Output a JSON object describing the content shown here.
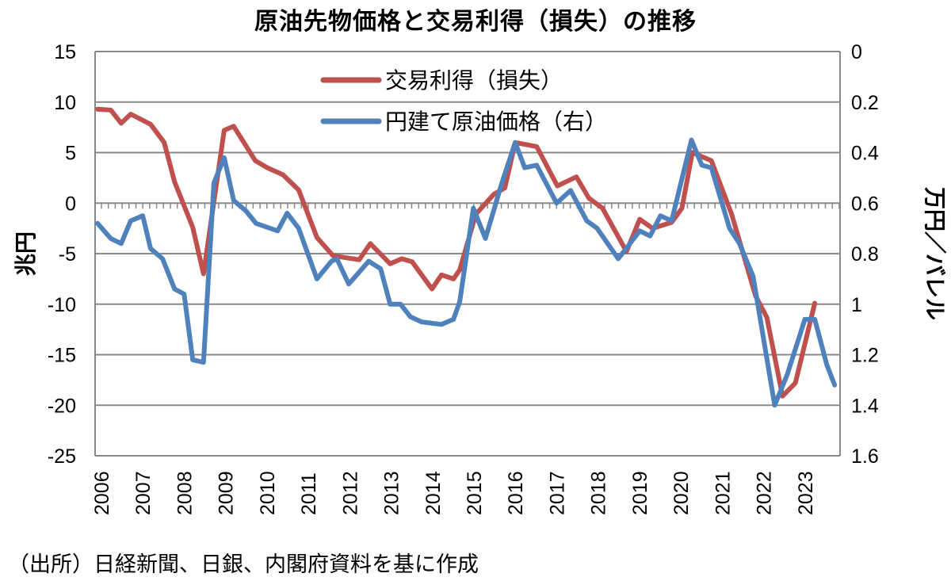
{
  "chart_data": {
    "type": "line",
    "title": "原油先物価格と交易利得（損失）の推移",
    "source_note": "（出所）日経新聞、日銀、内閣府資料を基に作成",
    "ylabel_left": "兆円",
    "ylabel_right": "万円／バレル",
    "xlabel": "",
    "x_ticks": [
      "2006",
      "2007",
      "2008",
      "2009",
      "2010",
      "2011",
      "2012",
      "2013",
      "2014",
      "2015",
      "2016",
      "2017",
      "2018",
      "2019",
      "2020",
      "2021",
      "2022",
      "2023"
    ],
    "xlim": [
      2006,
      2024
    ],
    "ylim_left": [
      -25,
      15
    ],
    "y_ticks_left": [
      "15",
      "10",
      "5",
      "0",
      "-5",
      "-10",
      "-15",
      "-20",
      "-25"
    ],
    "ylim_right": [
      1.6,
      0
    ],
    "right_axis_inverted": true,
    "y_ticks_right": [
      "0",
      "0.2",
      "0.4",
      "0.6",
      "0.8",
      "1",
      "1.2",
      "1.4",
      "1.6"
    ],
    "grid": true,
    "legend_position": "top-center",
    "series": [
      {
        "name": "交易利得（損失）",
        "axis": "left",
        "color": "#c0504d",
        "x": [
          2006.06,
          2006.38,
          2006.63,
          2006.86,
          2007.34,
          2007.67,
          2007.92,
          2008.36,
          2008.62,
          2009.12,
          2009.35,
          2009.87,
          2010.16,
          2010.54,
          2010.92,
          2011.36,
          2011.75,
          2012.38,
          2012.65,
          2013.13,
          2013.41,
          2013.66,
          2014.14,
          2014.37,
          2014.66,
          2014.81,
          2015.2,
          2015.64,
          2015.9,
          2016.15,
          2016.67,
          2017.17,
          2017.63,
          2017.93,
          2018.26,
          2018.84,
          2019.16,
          2019.47,
          2019.93,
          2020.18,
          2020.43,
          2020.89,
          2021.38,
          2021.96,
          2022.23,
          2022.61,
          2022.92,
          2023.39
        ],
        "y": [
          9.3,
          9.2,
          7.9,
          8.8,
          7.8,
          6.0,
          2.1,
          -2.4,
          -7.0,
          7.2,
          7.6,
          4.2,
          3.5,
          2.8,
          1.3,
          -3.4,
          -5.2,
          -5.6,
          -4.0,
          -6.0,
          -5.5,
          -5.8,
          -8.5,
          -7.1,
          -7.5,
          -6.6,
          -1.1,
          0.9,
          1.5,
          6.0,
          5.6,
          1.7,
          2.6,
          0.5,
          -0.5,
          -4.8,
          -1.6,
          -2.5,
          -1.9,
          -0.5,
          5.0,
          4.2,
          -1.1,
          -9.2,
          -11.3,
          -19.1,
          -17.8,
          -9.9
        ]
      },
      {
        "name": "円建て原油価格（右）",
        "axis": "right",
        "color": "#4f81bd",
        "x": [
          2006.06,
          2006.38,
          2006.63,
          2006.86,
          2007.15,
          2007.34,
          2007.63,
          2007.92,
          2008.15,
          2008.36,
          2008.62,
          2008.87,
          2009.12,
          2009.35,
          2009.64,
          2009.89,
          2010.41,
          2010.64,
          2010.92,
          2011.36,
          2011.71,
          2011.84,
          2012.13,
          2012.61,
          2012.9,
          2013.13,
          2013.38,
          2013.62,
          2013.89,
          2014.37,
          2014.66,
          2014.81,
          2015.14,
          2015.43,
          2015.83,
          2016.15,
          2016.38,
          2016.67,
          2017.15,
          2017.49,
          2017.88,
          2018.13,
          2018.64,
          2019.16,
          2019.41,
          2019.66,
          2019.93,
          2020.41,
          2020.66,
          2020.89,
          2021.33,
          2021.57,
          2021.9,
          2022.42,
          2022.72,
          2023.15,
          2023.39,
          2023.68,
          2023.87
        ],
        "y": [
          0.68,
          0.74,
          0.76,
          0.67,
          0.65,
          0.78,
          0.82,
          0.94,
          0.96,
          1.22,
          1.23,
          0.52,
          0.42,
          0.59,
          0.63,
          0.68,
          0.71,
          0.64,
          0.7,
          0.9,
          0.83,
          0.82,
          0.92,
          0.83,
          0.86,
          1.0,
          1.0,
          1.05,
          1.07,
          1.08,
          1.06,
          0.99,
          0.62,
          0.74,
          0.52,
          0.36,
          0.46,
          0.45,
          0.6,
          0.55,
          0.67,
          0.7,
          0.82,
          0.71,
          0.73,
          0.65,
          0.67,
          0.35,
          0.45,
          0.46,
          0.7,
          0.76,
          0.89,
          1.4,
          1.28,
          1.06,
          1.06,
          1.24,
          1.32
        ]
      }
    ]
  }
}
